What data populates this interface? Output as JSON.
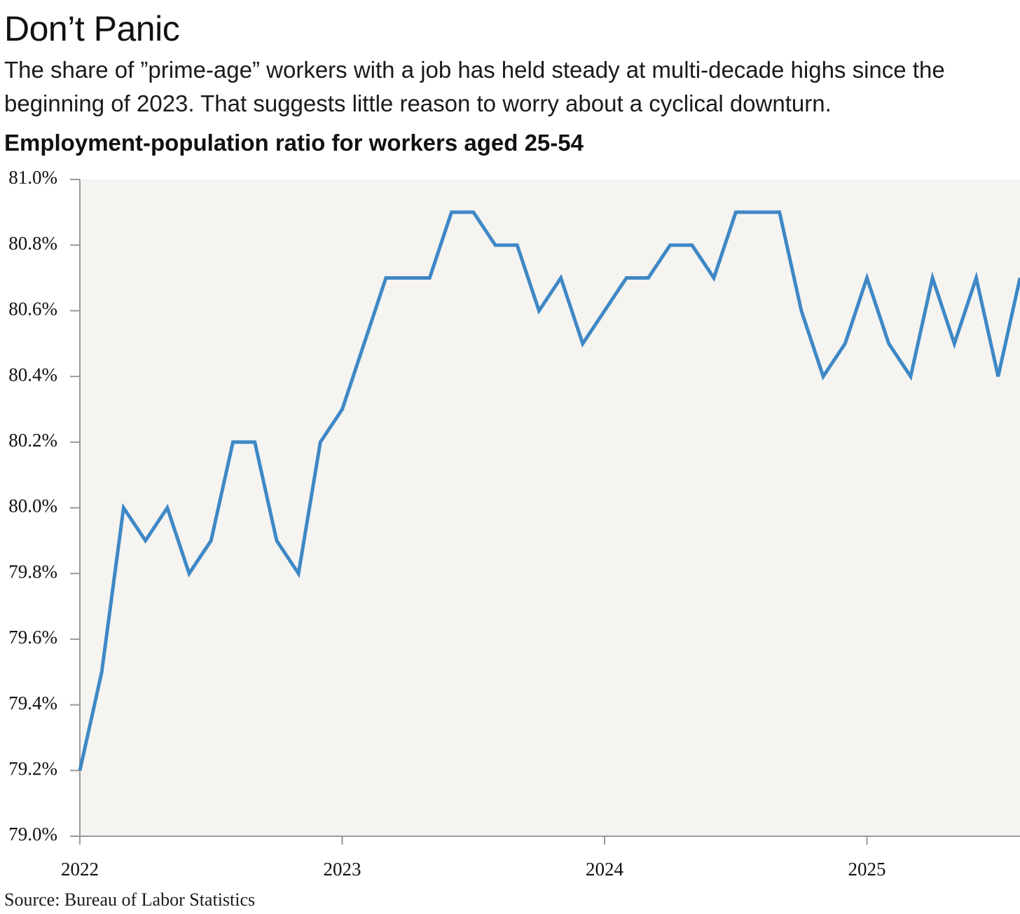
{
  "title": "Don’t Panic",
  "subtitle": "The share of ”prime-age” workers with a job has held steady at multi-decade highs since the beginning of 2023. That suggests little reason to worry about a cyclical downturn.",
  "chart_heading": "Employment-population ratio for workers aged 25-54",
  "source": "Source: Bureau of Labor Statistics",
  "colors": {
    "line": "#3f88c5",
    "plot_background": "#f5f4f1",
    "axis": "#9a9a9a",
    "text": "#111111"
  },
  "chart_data": {
    "type": "line",
    "title": "Employment-population ratio for workers aged 25-54",
    "xlabel": "",
    "ylabel": "",
    "ylim": [
      79.0,
      81.0
    ],
    "y_ticks": [
      79.0,
      79.2,
      79.4,
      79.6,
      79.8,
      80.0,
      80.2,
      80.4,
      80.6,
      80.8,
      81.0
    ],
    "y_tick_labels": [
      "79.0%",
      "79.2%",
      "79.4%",
      "79.6%",
      "79.8%",
      "80.0%",
      "80.2%",
      "80.4%",
      "80.6%",
      "80.8%",
      "81.0%"
    ],
    "x_tick_labels": [
      "2022",
      "2023",
      "2024",
      "2025"
    ],
    "grid": false,
    "legend": "none",
    "x": [
      "2022-01",
      "2022-02",
      "2022-03",
      "2022-04",
      "2022-05",
      "2022-06",
      "2022-07",
      "2022-08",
      "2022-09",
      "2022-10",
      "2022-11",
      "2022-12",
      "2023-01",
      "2023-02",
      "2023-03",
      "2023-04",
      "2023-05",
      "2023-06",
      "2023-07",
      "2023-08",
      "2023-09",
      "2023-10",
      "2023-11",
      "2023-12",
      "2024-01",
      "2024-02",
      "2024-03",
      "2024-04",
      "2024-05",
      "2024-06",
      "2024-07",
      "2024-08",
      "2024-09",
      "2024-10",
      "2024-11",
      "2024-12",
      "2025-01",
      "2025-02",
      "2025-03",
      "2025-04",
      "2025-05",
      "2025-06",
      "2025-07",
      "2025-08"
    ],
    "series": [
      {
        "values": [
          79.2,
          79.5,
          80.0,
          79.9,
          80.0,
          79.8,
          79.9,
          80.2,
          80.2,
          79.9,
          79.8,
          80.2,
          80.3,
          80.5,
          80.7,
          80.7,
          80.7,
          80.9,
          80.9,
          80.8,
          80.8,
          80.6,
          80.7,
          80.5,
          80.6,
          80.7,
          80.7,
          80.8,
          80.8,
          80.7,
          80.9,
          80.9,
          80.9,
          80.6,
          80.4,
          80.5,
          80.7,
          80.5,
          80.4,
          80.7,
          80.5,
          80.7,
          80.4,
          80.7
        ]
      }
    ]
  }
}
